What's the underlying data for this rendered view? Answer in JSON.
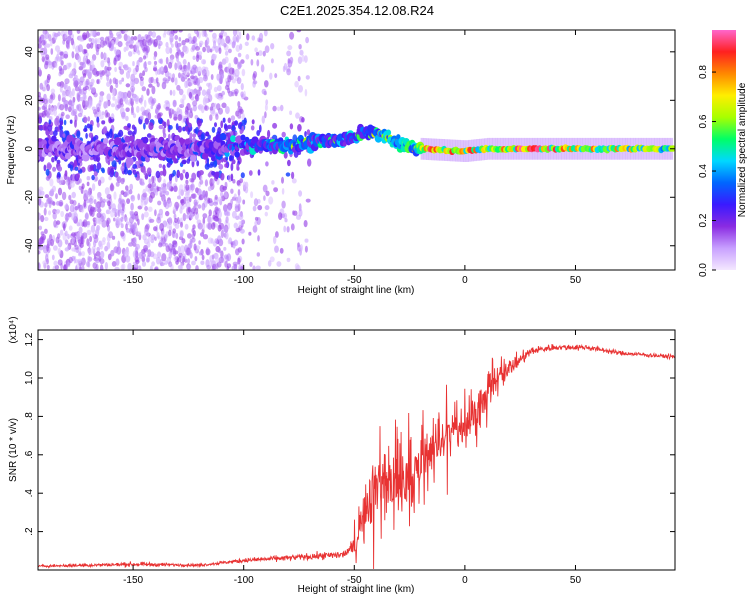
{
  "title": "C2E1.2025.354.12.08.R24",
  "colors": {
    "snr_line": "#e83232",
    "background": "#ffffff",
    "axis": "#000000"
  },
  "chart_data": [
    {
      "type": "heatmap",
      "name": "spectrogram",
      "xlabel": "Height of straight line (km)",
      "ylabel": "Frequency (Hz)",
      "xlim": [
        -193,
        95
      ],
      "ylim": [
        -50,
        49
      ],
      "xticks": [
        -150,
        -100,
        -50,
        0,
        50
      ],
      "yticks": [
        -40,
        -20,
        0,
        20,
        40
      ],
      "colorbar": {
        "label": "Normalized spectral amplitude",
        "range": [
          0,
          0.97
        ],
        "ticks": [
          0.0,
          0.2,
          0.4,
          0.6,
          0.8
        ],
        "colormap": [
          "#f4e8ff",
          "#c8a0ff",
          "#8a2be2",
          "#3a1aff",
          "#0066ff",
          "#00d8ff",
          "#00ff66",
          "#a8ff00",
          "#ffee00",
          "#ff8800",
          "#ff2020",
          "#ff66cc"
        ]
      },
      "ridge": [
        {
          "x": -190,
          "y": 0
        },
        {
          "x": -125,
          "y": 0
        },
        {
          "x": -100,
          "y": 1
        },
        {
          "x": -75,
          "y": 2
        },
        {
          "x": -55,
          "y": 4
        },
        {
          "x": -40,
          "y": 7
        },
        {
          "x": -35,
          "y": 5
        },
        {
          "x": -30,
          "y": 2
        },
        {
          "x": -20,
          "y": 0
        },
        {
          "x": 0,
          "y": -1
        },
        {
          "x": 10,
          "y": 0
        },
        {
          "x": 94,
          "y": 0
        }
      ],
      "ridge_amplitude": [
        {
          "x": -190,
          "a": 0.25
        },
        {
          "x": -125,
          "a": 0.3
        },
        {
          "x": -100,
          "a": 0.45
        },
        {
          "x": -80,
          "a": 0.6
        },
        {
          "x": -60,
          "a": 0.55
        },
        {
          "x": -45,
          "a": 0.55
        },
        {
          "x": -30,
          "a": 0.85
        },
        {
          "x": -20,
          "a": 0.9
        },
        {
          "x": -10,
          "a": 0.75
        },
        {
          "x": 0,
          "a": 0.85
        },
        {
          "x": 10,
          "a": 0.7
        },
        {
          "x": 30,
          "a": 0.9
        },
        {
          "x": 60,
          "a": 0.75
        },
        {
          "x": 94,
          "a": 0.65
        }
      ],
      "scatter_bands": [
        {
          "x0": -193,
          "x1": -120,
          "density": "high"
        },
        {
          "x0": -120,
          "x1": -100,
          "density": "medium"
        },
        {
          "x0": -100,
          "x1": -70,
          "density": "low"
        }
      ]
    },
    {
      "type": "line",
      "name": "snr",
      "xlabel": "Height of straight line (km)",
      "ylabel": "SNR (10 * v/v)",
      "y_multiplier": "(x10⁴)",
      "xlim": [
        -193,
        95
      ],
      "ylim": [
        0,
        1.25
      ],
      "xticks": [
        -150,
        -100,
        -50,
        0,
        50
      ],
      "yticks": [
        0.2,
        0.4,
        0.6,
        0.8,
        1.0,
        1.2
      ],
      "ytick_labels": [
        ".2",
        ".4",
        ".6",
        ".8",
        "1.0",
        "1.2"
      ],
      "series": [
        {
          "name": "SNR",
          "envelope": [
            {
              "x": -193,
              "y": 0.02,
              "noise": 0.012
            },
            {
              "x": -150,
              "y": 0.03,
              "noise": 0.02
            },
            {
              "x": -120,
              "y": 0.025,
              "noise": 0.012
            },
            {
              "x": -100,
              "y": 0.05,
              "noise": 0.02
            },
            {
              "x": -70,
              "y": 0.07,
              "noise": 0.03
            },
            {
              "x": -55,
              "y": 0.08,
              "noise": 0.04
            },
            {
              "x": -50,
              "y": 0.12,
              "noise": 0.08
            },
            {
              "x": -45,
              "y": 0.3,
              "noise": 0.25
            },
            {
              "x": -40,
              "y": 0.45,
              "noise": 0.3
            },
            {
              "x": -35,
              "y": 0.5,
              "noise": 0.28
            },
            {
              "x": -30,
              "y": 0.42,
              "noise": 0.28
            },
            {
              "x": -25,
              "y": 0.45,
              "noise": 0.26
            },
            {
              "x": -15,
              "y": 0.62,
              "noise": 0.22
            },
            {
              "x": -5,
              "y": 0.72,
              "noise": 0.2
            },
            {
              "x": 5,
              "y": 0.82,
              "noise": 0.18
            },
            {
              "x": 12,
              "y": 0.95,
              "noise": 0.16
            },
            {
              "x": 20,
              "y": 1.05,
              "noise": 0.09
            },
            {
              "x": 30,
              "y": 1.14,
              "noise": 0.04
            },
            {
              "x": 40,
              "y": 1.16,
              "noise": 0.03
            },
            {
              "x": 55,
              "y": 1.16,
              "noise": 0.025
            },
            {
              "x": 70,
              "y": 1.13,
              "noise": 0.02
            },
            {
              "x": 95,
              "y": 1.11,
              "noise": 0.02
            }
          ]
        }
      ]
    }
  ]
}
